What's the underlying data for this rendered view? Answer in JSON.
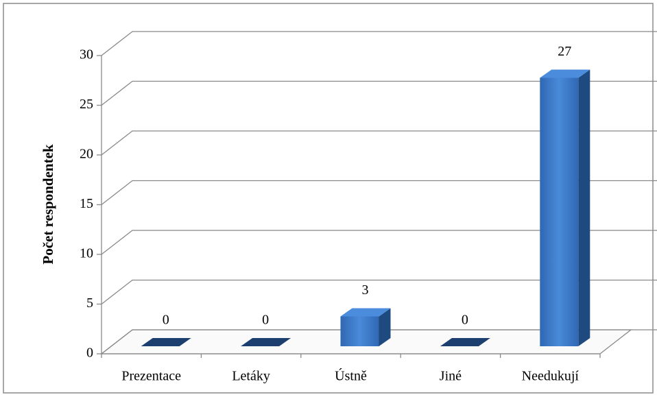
{
  "chart_data": {
    "type": "bar",
    "y_label": "Počet respondentek",
    "categories": [
      "Prezentace",
      "Letáky",
      "Ústně",
      "Jiné",
      "Needukují"
    ],
    "values": [
      0,
      0,
      3,
      0,
      27
    ],
    "color": "#3a78c8",
    "ylim": [
      0,
      30
    ],
    "yticks": [
      0,
      5,
      10,
      15,
      20,
      25,
      30
    ],
    "grid": true
  }
}
